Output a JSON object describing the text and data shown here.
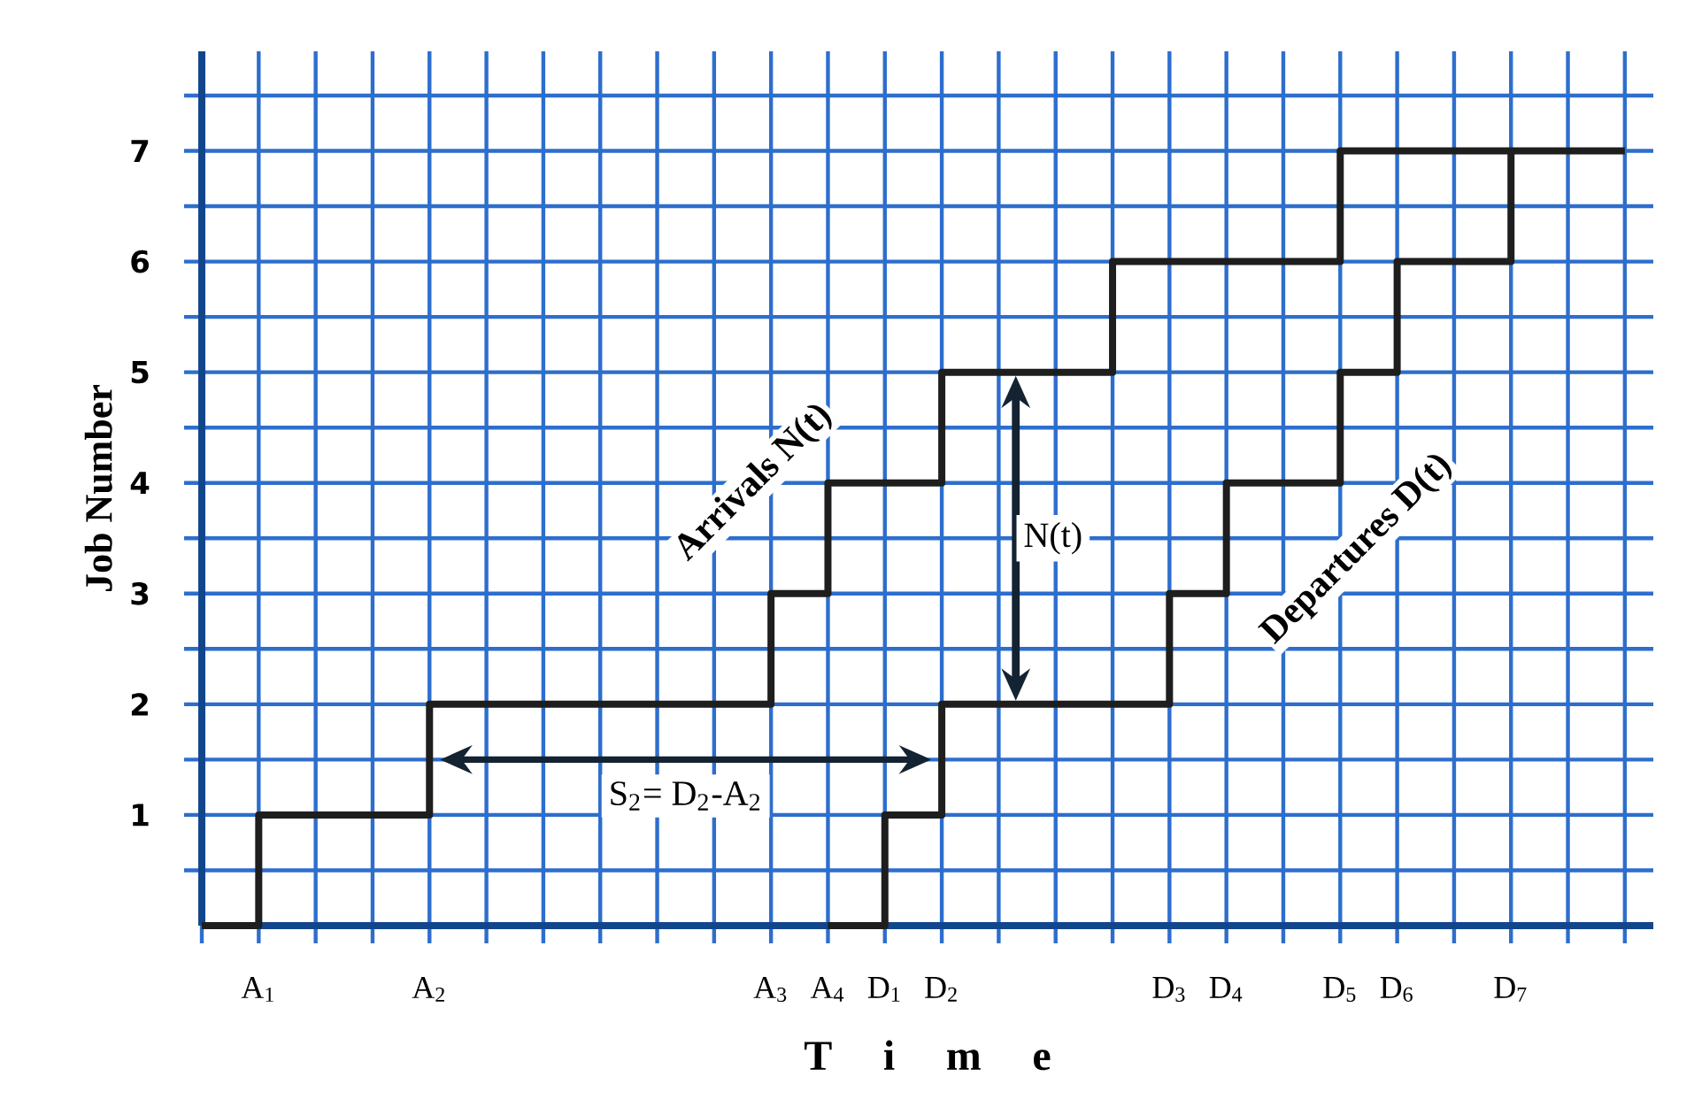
{
  "chart_data": {
    "type": "step",
    "xlabel": "T i m e",
    "ylabel": "Job Number",
    "categories": [
      null,
      "A$_{1}$",
      null,
      null,
      "A$_{2}$",
      null,
      null,
      null,
      null,
      null,
      "A$_{3}$",
      "A$_{4}$",
      "D$_{1}$",
      "D$_{2}$",
      null,
      null,
      null,
      "D$_{3}$",
      "D$_{4}$",
      null,
      "D$_{5}$",
      "D$_{6}$",
      null,
      "D$_{7}$",
      null,
      null
    ],
    "ylim": [
      0,
      7.9
    ],
    "yticks": [
      {
        "value": 0.5,
        "label": null
      },
      1,
      {
        "value": 1.5,
        "label": null
      },
      2,
      {
        "value": 2.5,
        "label": null
      },
      3,
      {
        "value": 3.5,
        "label": null
      },
      4,
      {
        "value": 4.5,
        "label": null
      },
      5,
      {
        "value": 5.5,
        "label": null
      },
      6,
      {
        "value": 6.5,
        "label": null
      },
      7,
      {
        "value": 7.5,
        "label": null
      }
    ],
    "grid": true,
    "legend": false,
    "marker": "none",
    "line_style": "solid",
    "series": [
      {
        "name": "Arrivals N(t)",
        "color": "#1e1e1e",
        "values": [
          0,
          1,
          1,
          1,
          2,
          2,
          2,
          2,
          2,
          2,
          3,
          4,
          4,
          5,
          5,
          5,
          6,
          6,
          6,
          6,
          7,
          7,
          7,
          7,
          7,
          7
        ]
      },
      {
        "name": "Departures D(t)",
        "color": "#1e1e1e",
        "values": [
          null,
          null,
          null,
          null,
          null,
          null,
          null,
          null,
          null,
          null,
          null,
          0,
          1,
          2,
          2,
          2,
          2,
          3,
          4,
          4,
          5,
          6,
          6,
          7,
          null,
          null
        ]
      }
    ],
    "annotations": [
      "N(t)",
      "S$_{2}$= D$_{2}$-A$_{2}$"
    ]
  }
}
